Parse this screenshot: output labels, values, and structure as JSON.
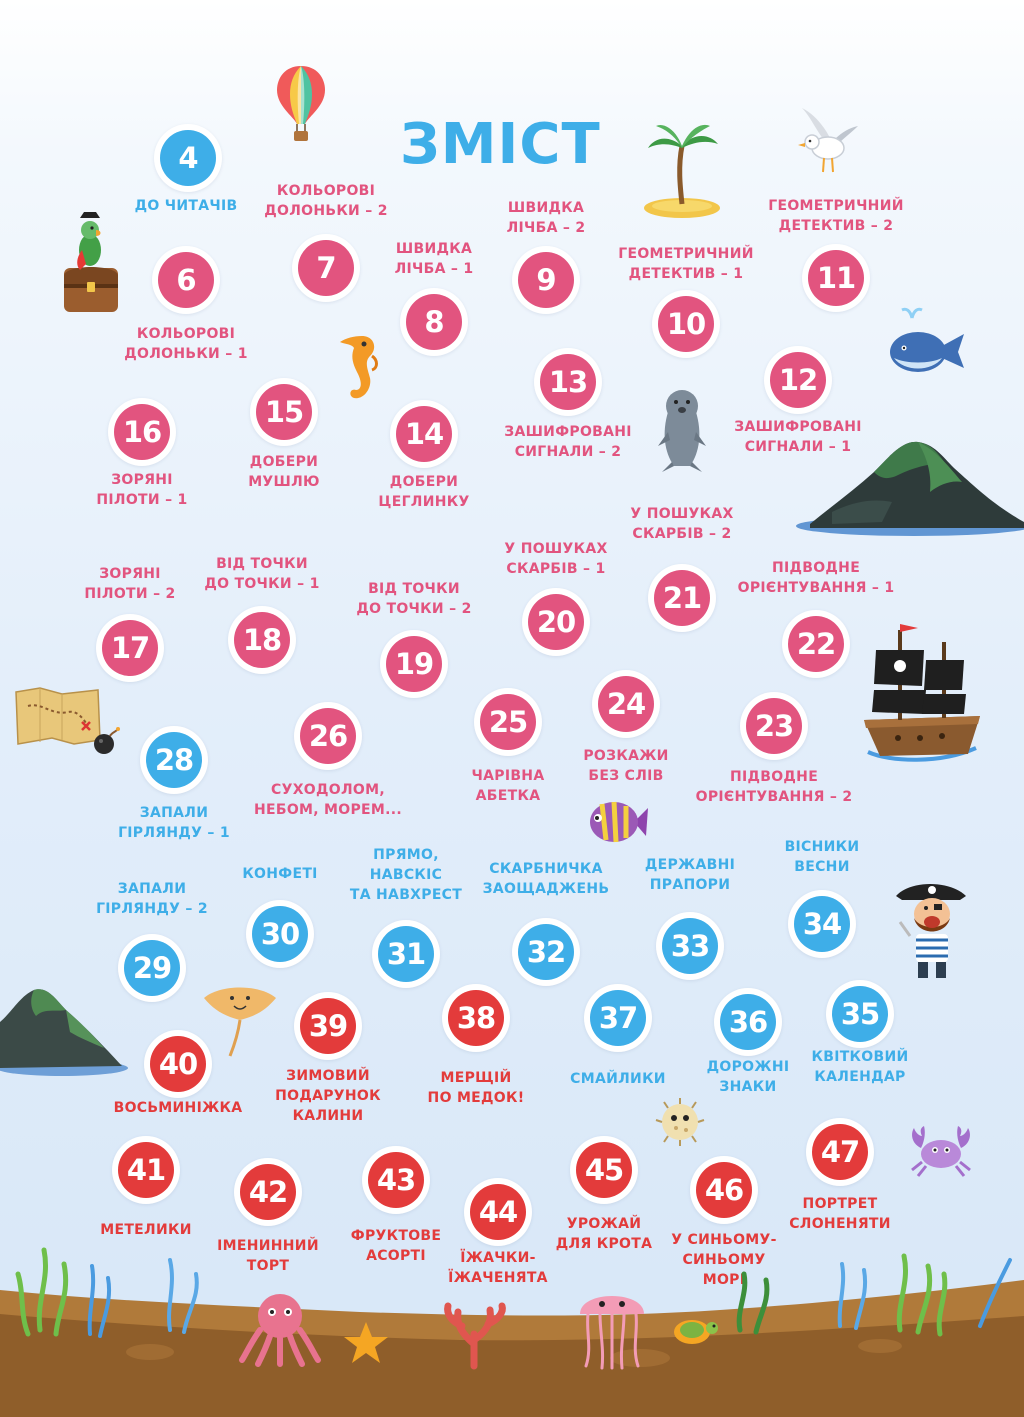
{
  "page": {
    "title": "ЗМІСТ"
  },
  "colors": {
    "blue": "#3eaee8",
    "pink": "#e2547f",
    "red": "#e33b3b"
  },
  "entries": [
    {
      "num": "4",
      "label": "ДО ЧИТАЧІВ",
      "color": "blue"
    },
    {
      "num": "6",
      "label": "КОЛЬОРОВІ\nДОЛОНЬКИ – 1",
      "color": "pink"
    },
    {
      "num": "7",
      "label": "КОЛЬОРОВІ\nДОЛОНЬКИ – 2",
      "color": "pink"
    },
    {
      "num": "8",
      "label": "ШВИДКА\nЛІЧБА – 1",
      "color": "pink"
    },
    {
      "num": "9",
      "label": "ШВИДКА\nЛІЧБА – 2",
      "color": "pink"
    },
    {
      "num": "10",
      "label": "ГЕОМЕТРИЧНИЙ\nДЕТЕКТИВ – 1",
      "color": "pink"
    },
    {
      "num": "11",
      "label": "ГЕОМЕТРИЧНИЙ\nДЕТЕКТИВ – 2",
      "color": "pink"
    },
    {
      "num": "12",
      "label": "ЗАШИФРОВАНІ\nСИГНАЛИ – 1",
      "color": "pink"
    },
    {
      "num": "13",
      "label": "ЗАШИФРОВАНІ\nСИГНАЛИ – 2",
      "color": "pink"
    },
    {
      "num": "14",
      "label": "ДОБЕРИ\nЦЕГЛИНКУ",
      "color": "pink"
    },
    {
      "num": "15",
      "label": "ДОБЕРИ\nМУШЛЮ",
      "color": "pink"
    },
    {
      "num": "16",
      "label": "ЗОРЯНІ\nПІЛОТИ – 1",
      "color": "pink"
    },
    {
      "num": "17",
      "label": "ЗОРЯНІ\nПІЛОТИ – 2",
      "color": "pink"
    },
    {
      "num": "18",
      "label": "ВІД ТОЧКИ\nДО ТОЧКИ – 1",
      "color": "pink"
    },
    {
      "num": "19",
      "label": "ВІД ТОЧКИ\nДО ТОЧКИ – 2",
      "color": "pink"
    },
    {
      "num": "20",
      "label": "У ПОШУКАХ\nСКАРБІВ – 1",
      "color": "pink"
    },
    {
      "num": "21",
      "label": "У ПОШУКАХ\nСКАРБІВ – 2",
      "color": "pink"
    },
    {
      "num": "22",
      "label": "ПІДВОДНЕ\nОРІЄНТУВАННЯ – 1",
      "color": "pink"
    },
    {
      "num": "23",
      "label": "ПІДВОДНЕ\nОРІЄНТУВАННЯ – 2",
      "color": "pink"
    },
    {
      "num": "24",
      "label": "РОЗКАЖИ\nБЕЗ СЛІВ",
      "color": "pink"
    },
    {
      "num": "25",
      "label": "ЧАРІВНА\nАБЕТКА",
      "color": "pink"
    },
    {
      "num": "26",
      "label": "СУХОДОЛОМ,\nНЕБОМ, МОРЕМ...",
      "color": "pink"
    },
    {
      "num": "28",
      "label": "ЗАПАЛИ\nГІРЛЯНДУ – 1",
      "color": "blue"
    },
    {
      "num": "29",
      "label": "ЗАПАЛИ\nГІРЛЯНДУ – 2",
      "color": "blue"
    },
    {
      "num": "30",
      "label": "КОНФЕТІ",
      "color": "blue"
    },
    {
      "num": "31",
      "label": "ПРЯМО,\nНАВСКІС\nТА НАВХРЕСТ",
      "color": "blue"
    },
    {
      "num": "32",
      "label": "СКАРБНИЧКА\nЗАОЩАДЖЕНЬ",
      "color": "blue"
    },
    {
      "num": "33",
      "label": "ДЕРЖАВНІ\nПРАПОРИ",
      "color": "blue"
    },
    {
      "num": "34",
      "label": "ВІСНИКИ\nВЕСНИ",
      "color": "blue"
    },
    {
      "num": "35",
      "label": "КВІТКОВИЙ\nКАЛЕНДАР",
      "color": "blue"
    },
    {
      "num": "36",
      "label": "ДОРОЖНІ\nЗНАКИ",
      "color": "blue"
    },
    {
      "num": "37",
      "label": "СМАЙЛИКИ",
      "color": "blue"
    },
    {
      "num": "38",
      "label": "МЕРЩІЙ\nПО МЕДОК!",
      "color": "red"
    },
    {
      "num": "39",
      "label": "ЗИМОВИЙ\nПОДАРУНОК\nКАЛИНИ",
      "color": "red"
    },
    {
      "num": "40",
      "label": "ВОСЬМИНІЖКА",
      "color": "red"
    },
    {
      "num": "41",
      "label": "МЕТЕЛИКИ",
      "color": "red"
    },
    {
      "num": "42",
      "label": "ІМЕНИННИЙ\nТОРТ",
      "color": "red"
    },
    {
      "num": "43",
      "label": "ФРУКТОВЕ\nАСОРТІ",
      "color": "red"
    },
    {
      "num": "44",
      "label": "ЇЖАЧКИ-\nЇЖАЧЕНЯТА",
      "color": "red"
    },
    {
      "num": "45",
      "label": "УРОЖАЙ\nДЛЯ КРОТА",
      "color": "red"
    },
    {
      "num": "46",
      "label": "У СИНЬОМУ-\nСИНЬОМУ\nМОРІ",
      "color": "red"
    },
    {
      "num": "47",
      "label": "ПОРТРЕТ\nСЛОНЕНЯТИ",
      "color": "red"
    }
  ],
  "illustrations": [
    "hot-air-balloon",
    "palm-island",
    "seagull",
    "parrot-on-chest",
    "seahorse",
    "whale",
    "seal",
    "island-mountain",
    "pirate-ship",
    "treasure-map",
    "bomb",
    "tropical-fish",
    "pirate",
    "rock-island",
    "stingray",
    "pufferfish",
    "crab",
    "octopus",
    "starfish",
    "coral",
    "jellyfish",
    "turtle",
    "seaweed",
    "seabed"
  ]
}
